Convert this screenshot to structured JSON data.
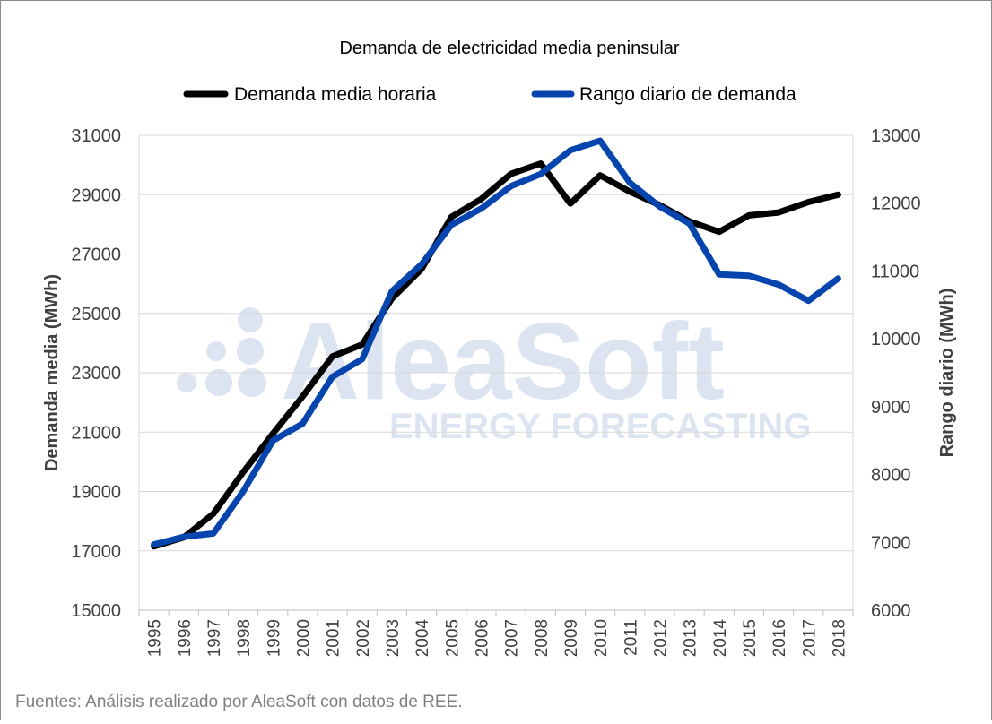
{
  "chart_data": {
    "type": "line",
    "title": "Demanda de electricidad media peninsular",
    "x": [
      "1995",
      "1996",
      "1997",
      "1998",
      "1999",
      "2000",
      "2001",
      "2002",
      "2003",
      "2004",
      "2005",
      "2006",
      "2007",
      "2008",
      "2009",
      "2010",
      "2011",
      "2012",
      "2013",
      "2014",
      "2015",
      "2016",
      "2017",
      "2018"
    ],
    "ylabel": "Demanda media (MWh)",
    "y2label": "Rango diario (MWh)",
    "ylim": [
      15000,
      31000
    ],
    "y2lim": [
      6000,
      13000
    ],
    "yticks": [
      "15000",
      "17000",
      "19000",
      "21000",
      "23000",
      "25000",
      "27000",
      "29000",
      "31000"
    ],
    "y2ticks": [
      "6000",
      "7000",
      "8000",
      "9000",
      "10000",
      "11000",
      "12000",
      "13000"
    ],
    "grid": true,
    "legend_position": "top",
    "series": [
      {
        "name": "Demanda media horaria",
        "axis": "left",
        "color": "#000000",
        "values": [
          17150,
          17450,
          18250,
          19650,
          20950,
          22200,
          23550,
          23950,
          25500,
          26500,
          28250,
          28850,
          29700,
          30050,
          28700,
          29650,
          29100,
          28650,
          28100,
          27750,
          28300,
          28400,
          28750,
          29000
        ]
      },
      {
        "name": "Rango diario de demanda",
        "axis": "right",
        "color": "#0645AD",
        "values": [
          6970,
          7080,
          7130,
          7750,
          8500,
          8750,
          9440,
          9700,
          10700,
          11100,
          11680,
          11920,
          12250,
          12430,
          12780,
          12920,
          12300,
          11950,
          11700,
          10950,
          10930,
          10800,
          10560,
          10890
        ]
      }
    ]
  },
  "watermark": {
    "brand": "AleaSoft",
    "tagline": "ENERGY FORECASTING"
  },
  "source_note": "Fuentes: Análisis realizado por AleaSoft con datos de REE."
}
